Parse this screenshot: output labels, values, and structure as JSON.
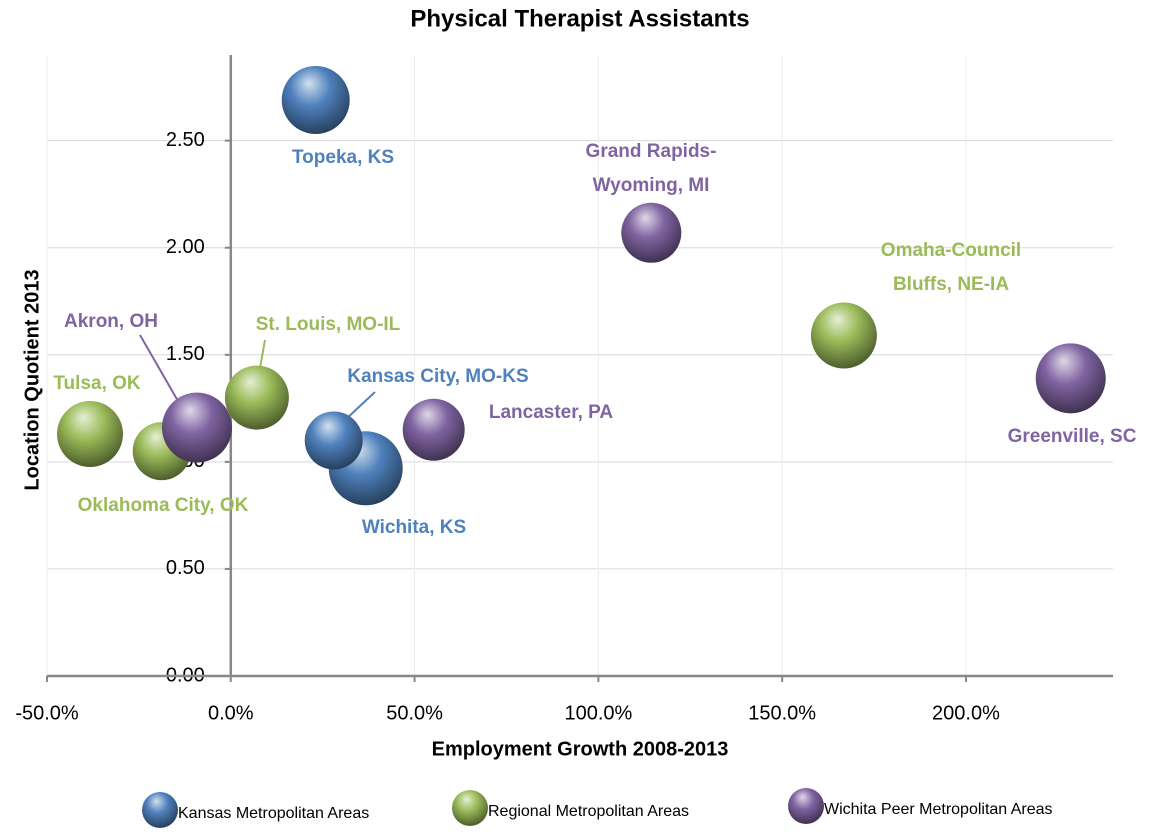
{
  "chart_data": {
    "type": "bubble",
    "title": "Physical Therapist Assistants",
    "x_label": "Employment Growth 2008-2013",
    "y_label": "Location Quotient 2013",
    "xlim": [
      -50,
      240
    ],
    "ylim": [
      0,
      2.9
    ],
    "xticks": [
      {
        "value": -50,
        "label": "-50.0%"
      },
      {
        "value": 0,
        "label": "0.0%"
      },
      {
        "value": 50,
        "label": "50.0%"
      },
      {
        "value": 100,
        "label": "100.0%"
      },
      {
        "value": 150,
        "label": "150.0%"
      },
      {
        "value": 200,
        "label": "200.0%"
      }
    ],
    "yticks": [
      {
        "value": 0,
        "label": "0.00"
      },
      {
        "value": 0.5,
        "label": "0.50"
      },
      {
        "value": 1,
        "label": "1.00"
      },
      {
        "value": 1.5,
        "label": "1.50"
      },
      {
        "value": 2,
        "label": "2.00"
      },
      {
        "value": 2.5,
        "label": "2.50"
      }
    ],
    "grid": true,
    "legend": "bottom",
    "series": [
      {
        "name": "Kansas Metropolitan Areas",
        "color": "#4f81bd",
        "x": [
          23.1,
          36.7,
          28.0
        ],
        "values": [
          2.69,
          0.97,
          1.1
        ],
        "sizes": [
          34,
          37,
          29
        ],
        "labels": [
          "Topeka, KS",
          "Wichita, KS",
          "Kansas City, MO-KS"
        ]
      },
      {
        "name": "Regional Metropolitan Areas",
        "color": "#9bbb59",
        "x": [
          -38.3,
          -18.8,
          7.1,
          166.8
        ],
        "values": [
          1.13,
          1.05,
          1.3,
          1.59
        ],
        "sizes": [
          33,
          29,
          32,
          33
        ],
        "labels": [
          "Tulsa, OK",
          "Oklahoma City, OK",
          "St. Louis, MO-IL",
          [
            "Omaha-Council",
            "Bluffs, NE-IA"
          ]
        ]
      },
      {
        "name": "Wichita Peer Metropolitan Areas",
        "color": "#8064a2",
        "x": [
          -9.2,
          55.2,
          114.4,
          228.5
        ],
        "values": [
          1.16,
          1.15,
          2.07,
          1.39
        ],
        "sizes": [
          35,
          31,
          30,
          35
        ],
        "labels": [
          "Akron, OH",
          "Lancaster, PA",
          [
            "Grand Rapids-",
            "Wyoming, MI"
          ],
          "Greenville, SC"
        ]
      }
    ]
  }
}
